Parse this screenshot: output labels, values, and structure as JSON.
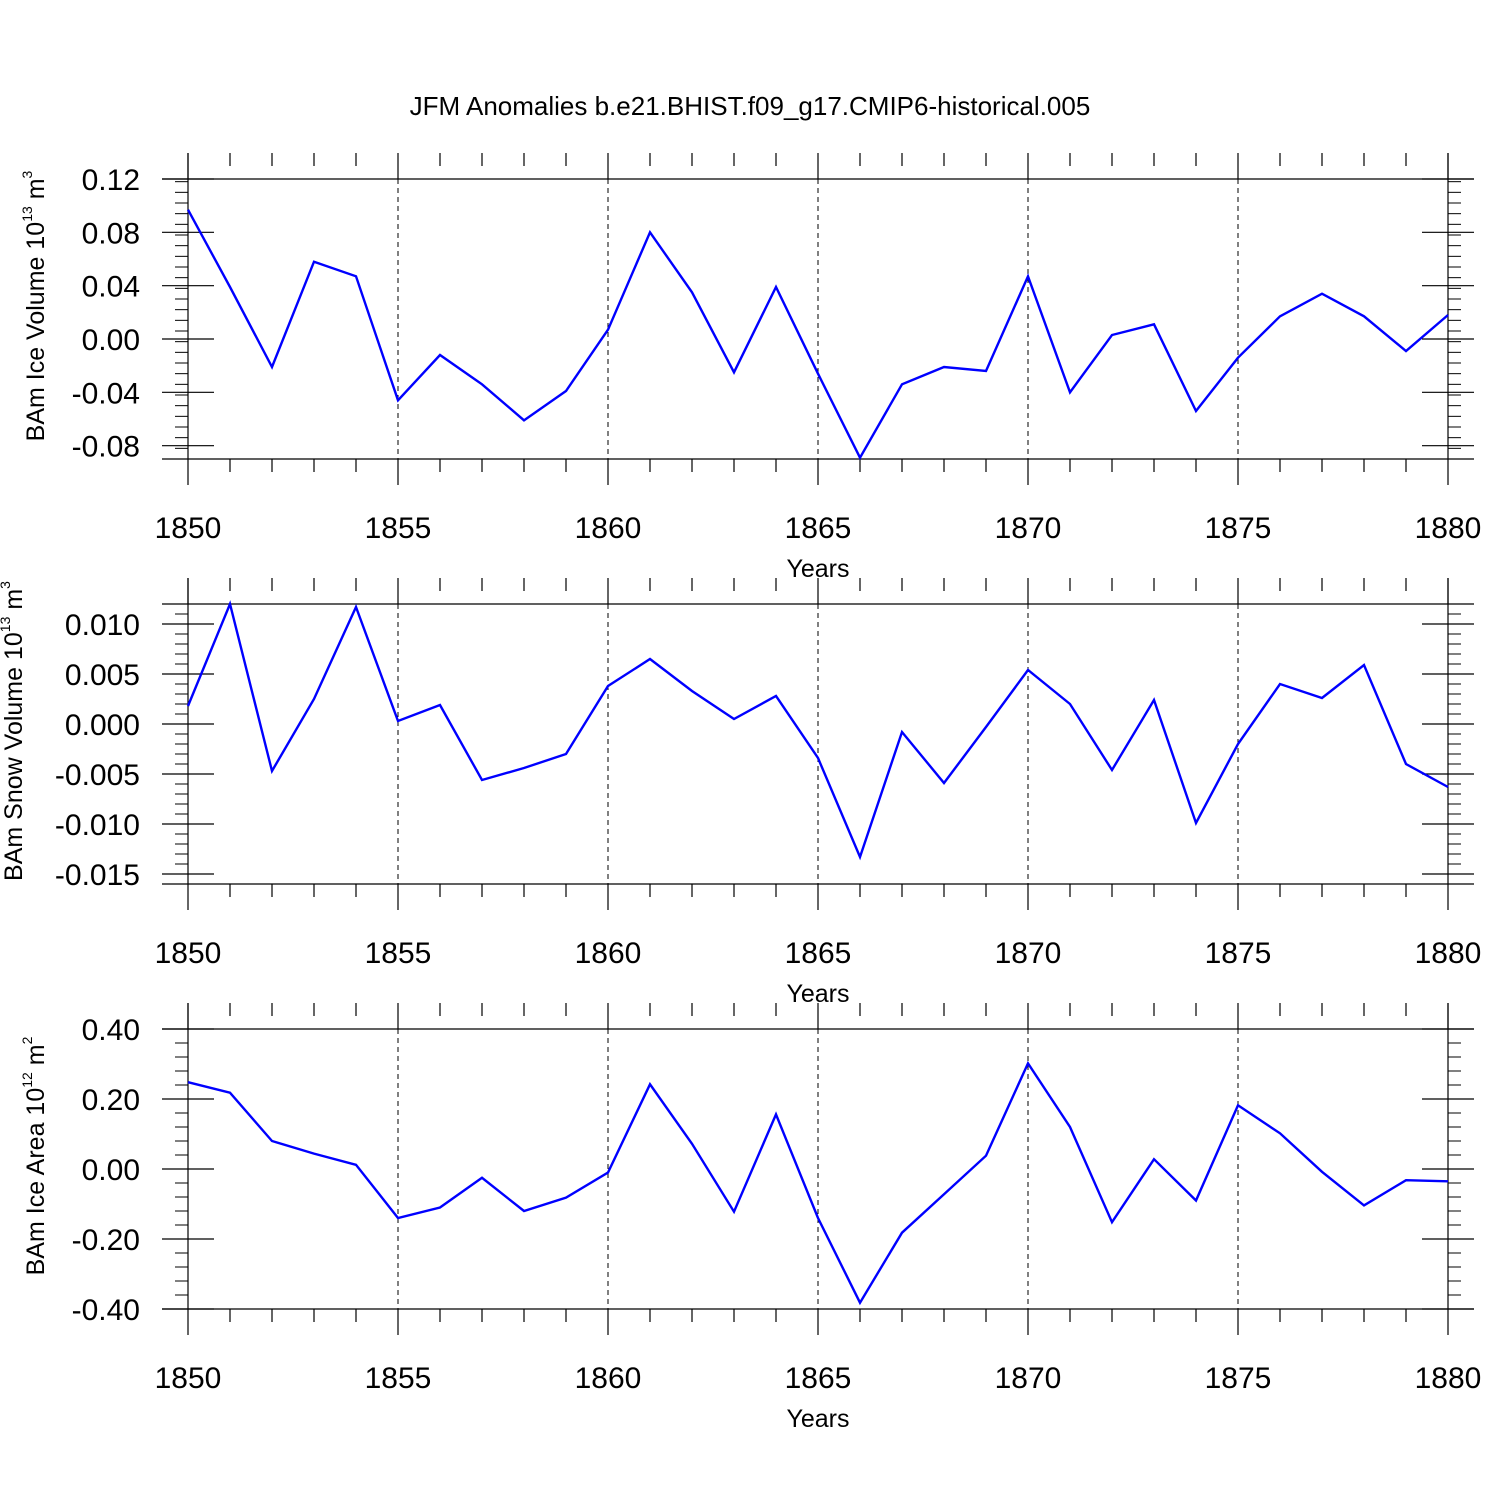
{
  "title": "JFM Anomalies b.e21.BHIST.f09_g17.CMIP6-historical.005",
  "colors": {
    "series": "#0000ff",
    "axis": "#000000",
    "grid": "#000000",
    "background": "#ffffff"
  },
  "chart_data": [
    {
      "type": "line",
      "ylabel": {
        "main": "BAm Ice Volume 10",
        "exp": "13",
        "unit": " m",
        "unit_exp": "3"
      },
      "xlabel": "Years",
      "xlim": [
        1850,
        1880
      ],
      "ylim": [
        -0.09,
        0.12
      ],
      "xticks": [
        "1850",
        "1855",
        "1860",
        "1865",
        "1870",
        "1875",
        "1880"
      ],
      "yticks": [
        "0.12",
        "0.08",
        "0.04",
        "0.00",
        "-0.04",
        "-0.08"
      ],
      "ytick_values": [
        0.12,
        0.08,
        0.04,
        0.0,
        -0.04,
        -0.08
      ],
      "ygrid_zero_line": true,
      "xgrid": "dashed",
      "x": [
        1850,
        1851,
        1852,
        1853,
        1854,
        1855,
        1856,
        1857,
        1858,
        1859,
        1860,
        1861,
        1862,
        1863,
        1864,
        1865,
        1866,
        1867,
        1868,
        1869,
        1870,
        1871,
        1872,
        1873,
        1874,
        1875,
        1876,
        1877,
        1878,
        1879,
        1880
      ],
      "series": [
        {
          "values": [
            0.097,
            0.039,
            -0.021,
            0.058,
            0.047,
            -0.046,
            -0.012,
            -0.034,
            -0.061,
            -0.039,
            0.007,
            0.08,
            0.035,
            -0.025,
            0.039,
            -0.026,
            -0.089,
            -0.034,
            -0.021,
            -0.024,
            0.047,
            -0.04,
            0.003,
            0.011,
            -0.054,
            -0.014,
            0.017,
            0.034,
            0.017,
            -0.009,
            0.018
          ]
        }
      ]
    },
    {
      "type": "line",
      "ylabel": {
        "main": "BAm Snow Volume 10",
        "exp": "13",
        "unit": " m",
        "unit_exp": "3"
      },
      "xlabel": "Years",
      "xlim": [
        1850,
        1880
      ],
      "ylim": [
        -0.016,
        0.012
      ],
      "xticks": [
        "1850",
        "1855",
        "1860",
        "1865",
        "1870",
        "1875",
        "1880"
      ],
      "yticks": [
        "0.010",
        "0.005",
        "0.000",
        "-0.005",
        "-0.010",
        "-0.015"
      ],
      "ytick_values": [
        0.01,
        0.005,
        0.0,
        -0.005,
        -0.01,
        -0.015
      ],
      "xgrid": "dashed",
      "x": [
        1850,
        1851,
        1852,
        1853,
        1854,
        1855,
        1856,
        1857,
        1858,
        1859,
        1860,
        1861,
        1862,
        1863,
        1864,
        1865,
        1866,
        1867,
        1868,
        1869,
        1870,
        1871,
        1872,
        1873,
        1874,
        1875,
        1876,
        1877,
        1878,
        1879,
        1880
      ],
      "series": [
        {
          "values": [
            0.0018,
            0.012,
            -0.0047,
            0.0025,
            0.0117,
            0.0003,
            0.0019,
            -0.0056,
            -0.0044,
            -0.003,
            0.0038,
            0.0065,
            0.0033,
            0.0005,
            0.0028,
            -0.0034,
            -0.0133,
            -0.0008,
            -0.0059,
            -0.0003,
            0.0054,
            0.002,
            -0.0046,
            0.0024,
            -0.0099,
            -0.002,
            0.004,
            0.0026,
            0.0059,
            -0.004,
            -0.0063
          ]
        }
      ]
    },
    {
      "type": "line",
      "ylabel": {
        "main": "BAm Ice Area 10",
        "exp": "12",
        "unit": " m",
        "unit_exp": "2"
      },
      "xlabel": "Years",
      "xlim": [
        1850,
        1880
      ],
      "ylim": [
        -0.4,
        0.4
      ],
      "xticks": [
        "1850",
        "1855",
        "1860",
        "1865",
        "1870",
        "1875",
        "1880"
      ],
      "yticks": [
        "0.40",
        "0.20",
        "0.00",
        "-0.20",
        "-0.40"
      ],
      "ytick_values": [
        0.4,
        0.2,
        0.0,
        -0.2,
        -0.4
      ],
      "xgrid": "dashed",
      "x": [
        1850,
        1851,
        1852,
        1853,
        1854,
        1855,
        1856,
        1857,
        1858,
        1859,
        1860,
        1861,
        1862,
        1863,
        1864,
        1865,
        1866,
        1867,
        1868,
        1869,
        1870,
        1871,
        1872,
        1873,
        1874,
        1875,
        1876,
        1877,
        1878,
        1879,
        1880
      ],
      "series": [
        {
          "values": [
            0.248,
            0.218,
            0.08,
            0.044,
            0.012,
            -0.14,
            -0.11,
            -0.025,
            -0.12,
            -0.082,
            -0.01,
            0.242,
            0.072,
            -0.122,
            0.156,
            -0.14,
            -0.382,
            -0.182,
            -0.072,
            0.038,
            0.302,
            0.12,
            -0.152,
            0.028,
            -0.09,
            0.182,
            0.102,
            -0.008,
            -0.104,
            -0.032,
            -0.035
          ]
        }
      ]
    }
  ]
}
